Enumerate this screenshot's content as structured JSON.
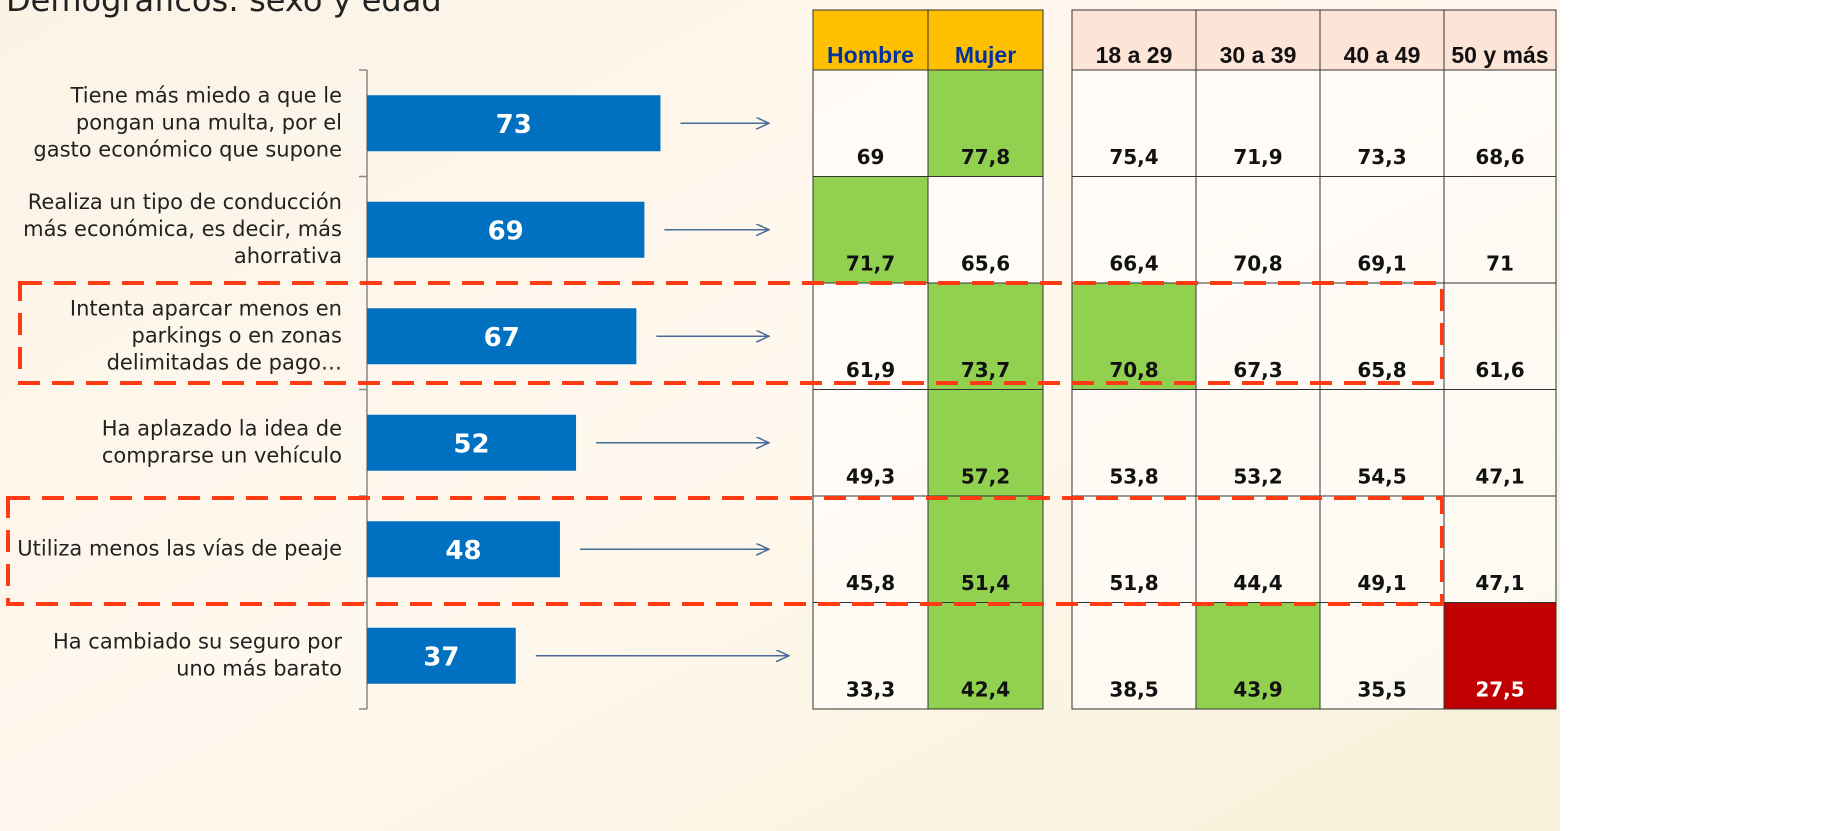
{
  "chart_data": {
    "type": "bar",
    "orientation": "horizontal",
    "title": "Demográficos: sexo y edad",
    "categories": [
      [
        "Tiene más miedo a que le",
        "pongan una multa, por el",
        "gasto económico que supone"
      ],
      [
        "Realiza un tipo de conducción",
        "más económica, es decir, más",
        "ahorrativa"
      ],
      [
        "Intenta aparcar menos en",
        "parkings o en zonas",
        "delimitadas de pago…"
      ],
      [
        "Ha aplazado la idea de",
        "comprarse un vehículo"
      ],
      [
        "Utiliza menos las vías de peaje"
      ],
      [
        "Ha cambiado su seguro por",
        "uno más barato"
      ]
    ],
    "values": [
      73,
      69,
      67,
      52,
      48,
      37
    ],
    "color": "#0070c0",
    "xlim": [
      0,
      100
    ]
  },
  "table": {
    "columns": [
      "Hombre",
      "Mujer",
      "18 a 29",
      "30 a 39",
      "40 a 49",
      "50 y más"
    ],
    "header_colors": [
      "#ffc000",
      "#ffc000",
      "#fce4d6",
      "#fce4d6",
      "#fce4d6",
      "#fce4d6"
    ],
    "rows": [
      [
        "69",
        "77,8",
        "75,4",
        "71,9",
        "73,3",
        "68,6"
      ],
      [
        "71,7",
        "65,6",
        "66,4",
        "70,8",
        "69,1",
        "71"
      ],
      [
        "61,9",
        "73,7",
        "70,8",
        "67,3",
        "65,8",
        "61,6"
      ],
      [
        "49,3",
        "57,2",
        "53,8",
        "53,2",
        "54,5",
        "47,1"
      ],
      [
        "45,8",
        "51,4",
        "51,8",
        "44,4",
        "49,1",
        "47,1"
      ],
      [
        "33,3",
        "42,4",
        "38,5",
        "43,9",
        "35,5",
        "27,5"
      ]
    ],
    "cell_colors": [
      [
        null,
        "#92d050",
        null,
        null,
        null,
        null
      ],
      [
        "#92d050",
        null,
        null,
        null,
        null,
        null
      ],
      [
        null,
        "#92d050",
        "#92d050",
        null,
        null,
        null
      ],
      [
        null,
        "#92d050",
        null,
        null,
        null,
        null
      ],
      [
        null,
        "#92d050",
        null,
        null,
        null,
        null
      ],
      [
        null,
        "#92d050",
        null,
        "#92d050",
        null,
        "#c00000"
      ]
    ]
  }
}
